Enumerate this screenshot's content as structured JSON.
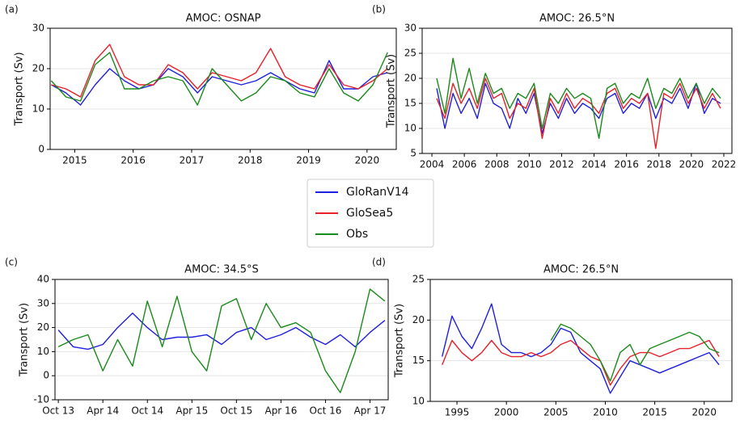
{
  "chart_data": [
    {
      "type": "line",
      "panel_label": "(a)",
      "title": "AMOC: OSNAP",
      "ylabel": "Transport (Sv)",
      "x": [
        2014.6,
        2014.85,
        2015.1,
        2015.35,
        2015.6,
        2015.85,
        2016.1,
        2016.35,
        2016.6,
        2016.85,
        2017.1,
        2017.35,
        2017.6,
        2017.85,
        2018.1,
        2018.35,
        2018.6,
        2018.85,
        2019.1,
        2019.35,
        2019.6,
        2019.85,
        2020.1,
        2020.35
      ],
      "xlim": [
        2014.58,
        2020.5
      ],
      "xticks": [
        2015,
        2016,
        2017,
        2018,
        2019,
        2020
      ],
      "ylim": [
        0,
        30
      ],
      "yticks": [
        0,
        10,
        20,
        30
      ],
      "grid": true,
      "series": [
        {
          "name": "GloRanV14",
          "color": "#1f1fe0",
          "values": [
            16,
            14,
            11,
            16,
            20,
            17,
            15,
            16,
            20,
            18,
            14,
            18,
            17,
            16,
            17,
            19,
            17,
            15,
            14,
            22,
            15,
            15,
            18,
            19
          ]
        },
        {
          "name": "GloSea5",
          "color": "#e8202a",
          "values": [
            16,
            15,
            13,
            22,
            26,
            18,
            16,
            16,
            21,
            19,
            15,
            19,
            18,
            17,
            19,
            25,
            18,
            16,
            15,
            21,
            16,
            15,
            17,
            20
          ]
        },
        {
          "name": "Obs",
          "color": "#1a8a1a",
          "values": [
            17,
            13,
            12,
            21,
            24,
            15,
            15,
            17,
            18,
            17,
            11,
            20,
            16,
            12,
            14,
            18,
            17,
            14,
            13,
            20,
            14,
            12,
            16,
            24
          ]
        }
      ]
    },
    {
      "type": "line",
      "panel_label": "(b)",
      "title": "AMOC: 26.5°N",
      "ylabel": "Transport (Sv)",
      "x": [
        2004.3,
        2004.8,
        2005.3,
        2005.8,
        2006.3,
        2006.8,
        2007.3,
        2007.8,
        2008.3,
        2008.8,
        2009.3,
        2009.8,
        2010.3,
        2010.8,
        2011.3,
        2011.8,
        2012.3,
        2012.8,
        2013.3,
        2013.8,
        2014.3,
        2014.8,
        2015.3,
        2015.8,
        2016.3,
        2016.8,
        2017.3,
        2017.8,
        2018.3,
        2018.8,
        2019.3,
        2019.8,
        2020.3,
        2020.8,
        2021.3,
        2021.8
      ],
      "xlim": [
        2003.4,
        2022.5
      ],
      "xticks": [
        2004,
        2006,
        2008,
        2010,
        2012,
        2014,
        2016,
        2018,
        2020,
        2022
      ],
      "ylim": [
        5,
        30
      ],
      "yticks": [
        5,
        10,
        15,
        20,
        25,
        30
      ],
      "grid": true,
      "series": [
        {
          "name": "GloRanV14",
          "color": "#1f1fe0",
          "values": [
            18,
            10,
            17,
            13,
            16,
            12,
            19,
            15,
            14,
            10,
            16,
            13,
            17,
            9,
            15,
            12,
            16,
            13,
            15,
            14,
            12,
            16,
            17,
            13,
            15,
            14,
            17,
            12,
            16,
            15,
            18,
            14,
            19,
            13,
            16,
            15
          ]
        },
        {
          "name": "GloSea5",
          "color": "#e8202a",
          "values": [
            16,
            12,
            19,
            15,
            18,
            14,
            20,
            16,
            17,
            12,
            15,
            14,
            18,
            8,
            16,
            13,
            17,
            14,
            16,
            15,
            13,
            17,
            18,
            14,
            16,
            15,
            17,
            6,
            17,
            16,
            19,
            15,
            18,
            14,
            17,
            14
          ]
        },
        {
          "name": "Obs",
          "color": "#1a8a1a",
          "values": [
            20,
            13,
            24,
            16,
            22,
            15,
            21,
            17,
            18,
            14,
            17,
            16,
            19,
            10,
            17,
            15,
            18,
            16,
            17,
            16,
            8,
            18,
            19,
            15,
            17,
            16,
            20,
            14,
            18,
            17,
            20,
            16,
            19,
            15,
            18,
            16
          ]
        }
      ]
    },
    {
      "type": "line",
      "panel_label": "(c)",
      "title": "AMOC: 34.5°S",
      "ylabel": "Transport (Sv)",
      "categories": [
        "Oct 13",
        null,
        null,
        "Apr 14",
        null,
        null,
        "Oct 14",
        null,
        null,
        "Apr 15",
        null,
        null,
        "Oct 15",
        null,
        null,
        "Apr 16",
        null,
        null,
        "Oct 16",
        null,
        null,
        "Apr 17",
        null
      ],
      "ylim": [
        -10,
        40
      ],
      "yticks": [
        -10,
        0,
        10,
        20,
        30,
        40
      ],
      "grid": true,
      "series": [
        {
          "name": "GloRanV14",
          "color": "#1f1fe0",
          "values": [
            19,
            12,
            11,
            13,
            20,
            26,
            20,
            15,
            16,
            16,
            17,
            13,
            18,
            20,
            15,
            17,
            20,
            16,
            13,
            17,
            12,
            18,
            23
          ]
        },
        {
          "name": "Obs",
          "color": "#1a8a1a",
          "values": [
            12,
            15,
            17,
            2,
            15,
            4,
            31,
            12,
            33,
            10,
            2,
            29,
            32,
            15,
            30,
            20,
            22,
            18,
            2,
            -7,
            10,
            36,
            31
          ]
        }
      ]
    },
    {
      "type": "line",
      "panel_label": "(d)",
      "title": "AMOC: 26.5°N",
      "ylabel": "Transport (Sv)",
      "x": [
        1993.5,
        1994.5,
        1995.5,
        1996.5,
        1997.5,
        1998.5,
        1999.5,
        2000.5,
        2001.5,
        2002.5,
        2003.5,
        2004.5,
        2005.5,
        2006.5,
        2007.5,
        2008.5,
        2009.5,
        2010.5,
        2011.5,
        2012.5,
        2013.5,
        2014.5,
        2015.5,
        2016.5,
        2017.5,
        2018.5,
        2019.5,
        2020.5,
        2021.5
      ],
      "xlim": [
        1992.3,
        2022.8
      ],
      "xticks": [
        1995,
        2000,
        2005,
        2010,
        2015,
        2020
      ],
      "ylim": [
        10,
        25
      ],
      "yticks": [
        10,
        15,
        20,
        25
      ],
      "grid": true,
      "series": [
        {
          "name": "GloRanV14",
          "color": "#1f1fe0",
          "values": [
            15.5,
            20.5,
            18,
            16.5,
            19,
            22,
            17,
            16,
            16,
            15.5,
            16,
            17,
            19,
            18.5,
            16,
            15,
            14,
            11,
            13,
            15,
            14.5,
            14,
            13.5,
            14,
            14.5,
            15,
            15.5,
            16,
            14.5
          ]
        },
        {
          "name": "GloSea5",
          "color": "#e8202a",
          "values": [
            14.5,
            17.5,
            16,
            15,
            16,
            17.5,
            16,
            15.5,
            15.5,
            16,
            15.5,
            16,
            17,
            17.5,
            16.5,
            15.5,
            15,
            12,
            14,
            15.5,
            16,
            16,
            15.5,
            16,
            16.5,
            16.5,
            17,
            17.5,
            15.5
          ]
        },
        {
          "name": "Obs",
          "color": "#1a8a1a",
          "values": [
            null,
            null,
            null,
            null,
            null,
            null,
            null,
            null,
            null,
            null,
            null,
            17.5,
            19.5,
            19,
            18,
            17,
            15,
            12.5,
            16,
            17,
            14.5,
            16.5,
            17,
            17.5,
            18,
            18.5,
            18,
            16.5,
            16
          ]
        }
      ]
    }
  ]
}
